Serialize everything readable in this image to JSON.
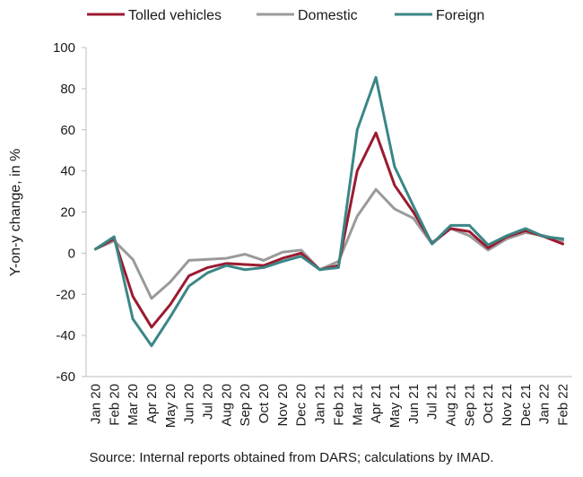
{
  "chart_data": {
    "type": "line",
    "ylabel": "Y-on-y change, in %",
    "ylim": [
      -60,
      100
    ],
    "yticks": [
      -60,
      -40,
      -20,
      0,
      20,
      40,
      60,
      80,
      100
    ],
    "grid": false,
    "legend_position": "top",
    "categories": [
      "Jan 20",
      "Feb 20",
      "Mar 20",
      "Apr 20",
      "May 20",
      "Jun 20",
      "Jul 20",
      "Aug 20",
      "Sep 20",
      "Oct 20",
      "Nov 20",
      "Dec 20",
      "Jan 21",
      "Feb 21",
      "Mar 21",
      "Apr 21",
      "May 21",
      "Jun 21",
      "Jul 21",
      "Aug 21",
      "Sep 21",
      "Oct 21",
      "Nov 21",
      "Dec 21",
      "Jan 22",
      "Feb 22"
    ],
    "series": [
      {
        "name": "Tolled vehicles",
        "color": "#9b1b30",
        "values": [
          2,
          7,
          -21,
          -36,
          -25,
          -11,
          -7,
          -5,
          -5.5,
          -6,
          -2.5,
          0,
          -8,
          -6,
          40,
          58.5,
          33,
          20,
          5,
          12,
          10.5,
          2.5,
          8,
          11,
          8,
          4.5
        ]
      },
      {
        "name": "Domestic",
        "color": "#9a9a9a",
        "values": [
          2,
          6,
          -3,
          -22,
          -14,
          -3.5,
          -3,
          -2.5,
          -0.5,
          -3.5,
          0.5,
          1.5,
          -8,
          -4,
          18,
          31,
          21.5,
          17,
          4.5,
          12,
          8.5,
          1.5,
          7,
          10,
          8.5,
          6
        ]
      },
      {
        "name": "Foreign",
        "color": "#3b8686",
        "values": [
          2,
          8,
          -32,
          -45,
          -31,
          -16,
          -9.5,
          -6,
          -8,
          -7,
          -4,
          -1.5,
          -8,
          -7,
          60,
          85.5,
          42,
          23,
          4.5,
          13.5,
          13.5,
          4,
          8.5,
          12,
          8,
          7
        ]
      }
    ],
    "source": "Source: Internal reports obtained from DARS; calculations by IMAD."
  }
}
